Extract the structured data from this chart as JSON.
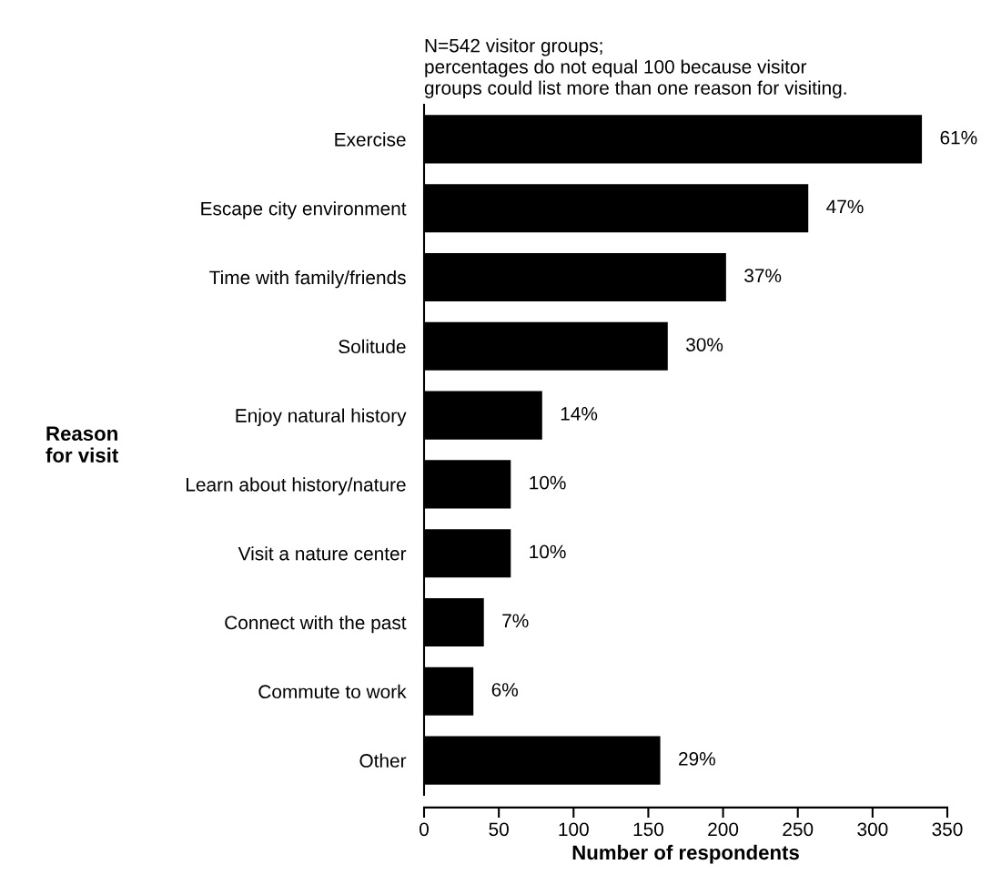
{
  "chart_data": {
    "type": "bar",
    "orientation": "horizontal",
    "subtitle": "N=542 visitor groups;\npercentages do not equal 100 because visitor\ngroups could list more than one reason for visiting.",
    "xlabel": "Number of respondents",
    "ylabel": "Reason\nfor visit",
    "categories": [
      "Exercise",
      "Escape city environment",
      "Time with family/friends",
      "Solitude",
      "Enjoy natural history",
      "Learn about history/nature",
      "Visit a nature center",
      "Connect with the past",
      "Commute to work",
      "Other"
    ],
    "values": [
      333,
      257,
      202,
      163,
      79,
      58,
      58,
      40,
      33,
      158
    ],
    "annotations": [
      {
        "text": "61%",
        "x": 333,
        "y": "Exercise"
      },
      {
        "text": "47%",
        "x": 257,
        "y": "Escape city environment"
      },
      {
        "text": "37%",
        "x": 202,
        "y": "Time with family/friends"
      },
      {
        "text": "30%",
        "x": 163,
        "y": "Solitude"
      },
      {
        "text": "14%",
        "x": 79,
        "y": "Enjoy natural history"
      },
      {
        "text": "10%",
        "x": 58,
        "y": "Learn about history/nature"
      },
      {
        "text": "10%",
        "x": 58,
        "y": "Visit a nature center"
      },
      {
        "text": "7%",
        "x": 40,
        "y": "Connect with the past"
      },
      {
        "text": "6%",
        "x": 33,
        "y": "Commute to work"
      },
      {
        "text": "29%",
        "x": 158,
        "y": "Other"
      }
    ],
    "color": "#000000",
    "xlim": [
      0,
      350
    ],
    "xticks": [
      0,
      50,
      100,
      150,
      200,
      250,
      300,
      350
    ],
    "grid": false
  }
}
